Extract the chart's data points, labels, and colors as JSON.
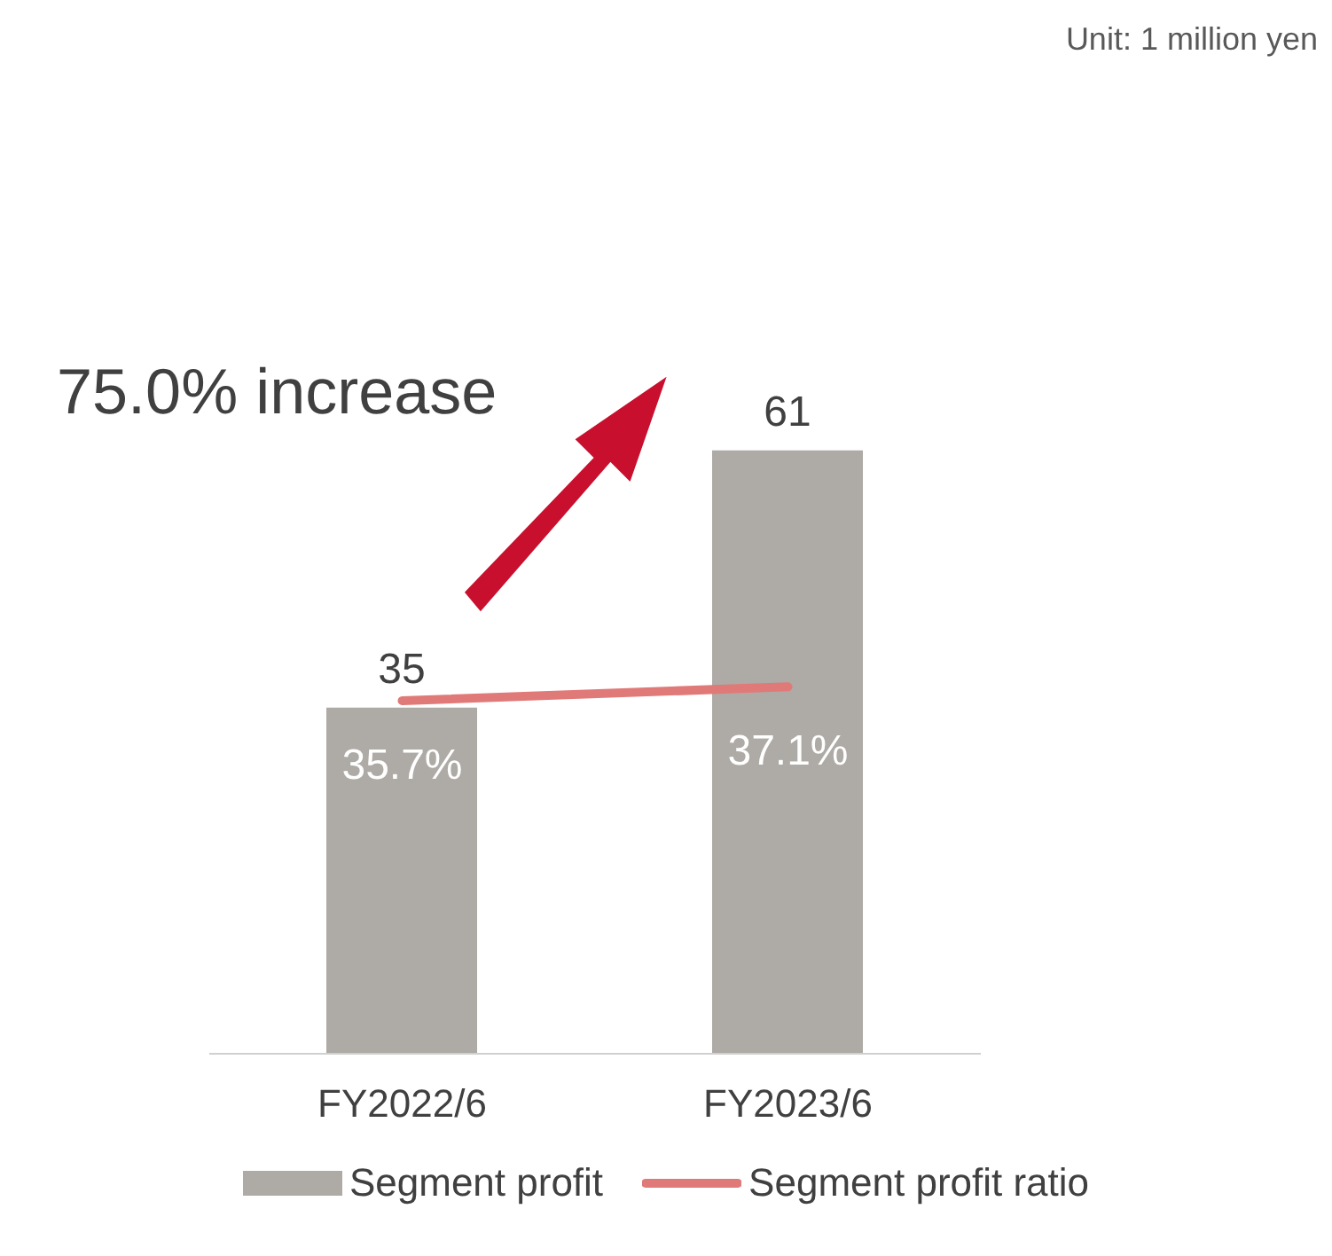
{
  "chart_data": {
    "type": "bar",
    "categories": [
      "FY2022/6",
      "FY2023/6"
    ],
    "series": [
      {
        "name": "Segment profit",
        "color": "#aeaaa5",
        "values": [
          35,
          61
        ],
        "value_labels": [
          "35",
          "61"
        ]
      },
      {
        "name": "Segment profit ratio",
        "type": "line",
        "color": "#e07a78",
        "values": [
          35.7,
          37.1
        ],
        "value_labels": [
          "35.7%",
          "37.1%"
        ]
      }
    ],
    "tick_labels": "x",
    "legend": "bottom",
    "grid": false,
    "marker": "none",
    "annotations": [
      "Unit: 1 million yen",
      "75.0% increase"
    ]
  }
}
